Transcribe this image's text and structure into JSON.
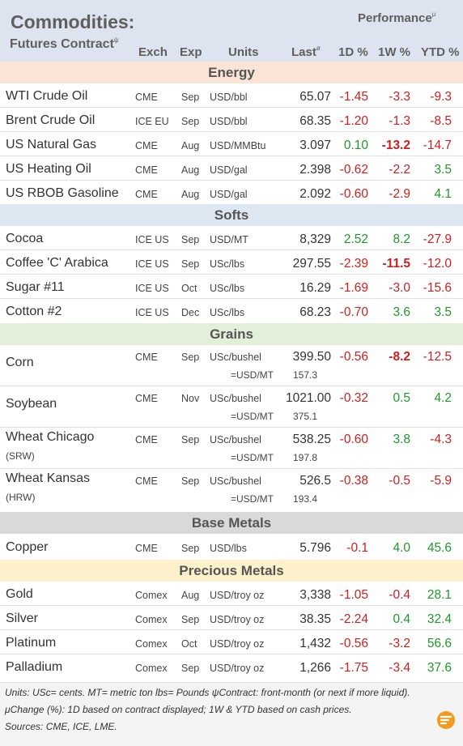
{
  "header": {
    "title": "Commodities:",
    "subtitle": "Futures Contract",
    "subtitle_mark": "ψ",
    "performance": "Performance",
    "performance_mark": "μ",
    "col_exch": "Exch",
    "col_exp": "Exp",
    "col_units": "Units",
    "col_last": "Last",
    "col_last_mark": "ø",
    "col_1d": "1D %",
    "col_1w": "1W %",
    "col_ytd": "YTD %"
  },
  "colors": {
    "header_bg": "#dde4ef",
    "energy_bg": "#fbe3d6",
    "softs_bg": "#dde8f3",
    "grains_bg": "#e2efd9",
    "base_metals_bg": "#d9d9d9",
    "precious_metals_bg": "#fdf1cc",
    "positive": "#1e9a2a",
    "negative": "#d01e1e"
  },
  "sections": {
    "energy": {
      "label": "Energy",
      "rows": [
        {
          "name": "WTI Crude Oil",
          "exch": "CME",
          "exp": "Sep",
          "units": "USD/bbl",
          "last": "65.07",
          "d1": "-1.45",
          "w1": "-3.3",
          "ytd": "-9.3"
        },
        {
          "name": "Brent Crude Oil",
          "exch": "ICE EU",
          "exp": "Sep",
          "units": "USD/bbl",
          "last": "68.35",
          "d1": "-1.20",
          "w1": "-1.3",
          "ytd": "-8.5"
        },
        {
          "name": "US Natural Gas",
          "exch": "CME",
          "exp": "Aug",
          "units": "USD/MMBtu",
          "last": "3.097",
          "d1": "0.10",
          "w1": "-13.2",
          "ytd": "-14.7"
        },
        {
          "name": "US Heating Oil",
          "exch": "CME",
          "exp": "Aug",
          "units": "USD/gal",
          "last": "2.398",
          "d1": "-0.62",
          "w1": "-2.2",
          "ytd": "3.5"
        },
        {
          "name": "US RBOB Gasoline",
          "exch": "CME",
          "exp": "Aug",
          "units": "USD/gal",
          "last": "2.092",
          "d1": "-0.60",
          "w1": "-2.9",
          "ytd": "4.1"
        }
      ]
    },
    "softs": {
      "label": "Softs",
      "rows": [
        {
          "name": "Cocoa",
          "exch": "ICE US",
          "exp": "Sep",
          "units": "USD/MT",
          "last": "8,329",
          "d1": "2.52",
          "w1": "8.2",
          "ytd": "-27.9"
        },
        {
          "name": "Coffee 'C' Arabica",
          "exch": "ICE US",
          "exp": "Sep",
          "units": "USc/lbs",
          "last": "297.55",
          "d1": "-2.39",
          "w1": "-11.5",
          "ytd": "-12.0"
        },
        {
          "name": "Sugar #11",
          "exch": "ICE US",
          "exp": "Oct",
          "units": "USc/lbs",
          "last": "16.29",
          "d1": "-1.69",
          "w1": "-3.0",
          "ytd": "-15.6"
        },
        {
          "name": "Cotton #2",
          "exch": "ICE US",
          "exp": "Dec",
          "units": "USc/lbs",
          "last": "68.23",
          "d1": "-0.70",
          "w1": "3.6",
          "ytd": "3.5"
        }
      ]
    },
    "grains": {
      "label": "Grains",
      "rows": [
        {
          "name": "Corn",
          "name_sub": "",
          "exch": "CME",
          "exp": "Sep",
          "units": "USc/bushel",
          "last": "399.50",
          "d1": "-0.56",
          "w1": "-8.2",
          "ytd": "-12.5",
          "conv_unit": "=USD/MT",
          "conv_value": "157.3"
        },
        {
          "name": "Soybean",
          "name_sub": "",
          "exch": "CME",
          "exp": "Nov",
          "units": "USc/bushel",
          "last": "1021.00",
          "d1": "-0.32",
          "w1": "0.5",
          "ytd": "4.2",
          "conv_unit": "=USD/MT",
          "conv_value": "375.1"
        },
        {
          "name": "Wheat Chicago",
          "name_sub": "(SRW)",
          "exch": "CME",
          "exp": "Sep",
          "units": "USc/bushel",
          "last": "538.25",
          "d1": "-0.60",
          "w1": "3.8",
          "ytd": "-4.3",
          "conv_unit": "=USD/MT",
          "conv_value": "197.8"
        },
        {
          "name": "Wheat Kansas",
          "name_sub": "(HRW)",
          "exch": "CME",
          "exp": "Sep",
          "units": "USc/bushel",
          "last": "526.5",
          "d1": "-0.38",
          "w1": "-0.5",
          "ytd": "-5.9",
          "conv_unit": "=USD/MT",
          "conv_value": "193.4"
        }
      ]
    },
    "base_metals": {
      "label": "Base Metals",
      "rows": [
        {
          "name": "Copper",
          "exch": "CME",
          "exp": "Sep",
          "units": "USD/lbs",
          "last": "5.796",
          "d1": "-0.1",
          "w1": "4.0",
          "ytd": "45.6"
        }
      ]
    },
    "precious_metals": {
      "label": "Precious Metals",
      "rows": [
        {
          "name": "Gold",
          "exch": "Comex",
          "exp": "Aug",
          "units": "USD/troy oz",
          "last": "3,338",
          "d1": "-1.05",
          "w1": "-0.4",
          "ytd": "28.1"
        },
        {
          "name": "Silver",
          "exch": "Comex",
          "exp": "Sep",
          "units": "USD/troy oz",
          "last": "38.35",
          "d1": "-2.24",
          "w1": "0.4",
          "ytd": "32.4"
        },
        {
          "name": "Platinum",
          "exch": "Comex",
          "exp": "Oct",
          "units": "USD/troy oz",
          "last": "1,432",
          "d1": "-0.56",
          "w1": "-3.2",
          "ytd": "56.6"
        },
        {
          "name": "Palladium",
          "exch": "Comex",
          "exp": "Sep",
          "units": "USD/troy oz",
          "last": "1,266",
          "d1": "-1.75",
          "w1": "-3.4",
          "ytd": "37.6"
        }
      ]
    }
  },
  "footer": {
    "line1": "Units: USc= cents.   MT= metric ton    lbs= Pounds   ψContract: front-month (or next if more liquid).",
    "line2": "μChange (%): 1D based on contract displayed; 1W & YTD based on cash prices.",
    "line3": "Sources: CME, ICE, LME.",
    "logo_icon": "brand-logo-icon"
  }
}
